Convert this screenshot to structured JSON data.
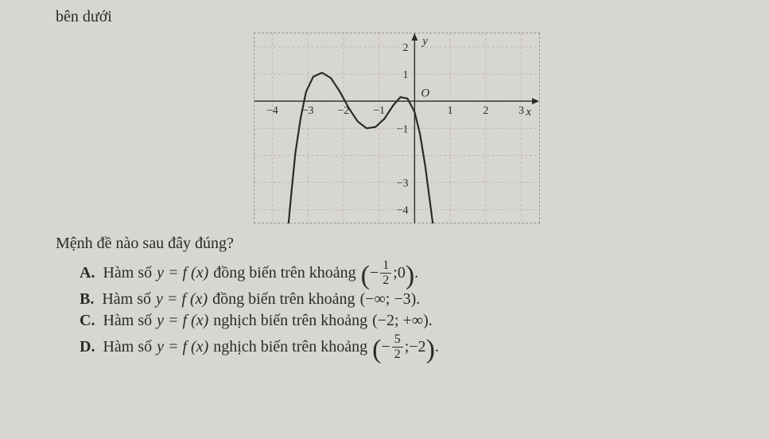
{
  "top_text": "bên dưới",
  "question": "Mệnh đề nào sau đây đúng?",
  "options": {
    "A": {
      "label": "A.",
      "pre": "Hàm số ",
      "fn": "y = f (x)",
      "mid": " đồng biến trên khoảng ",
      "interval_num": "1",
      "interval_den": "2",
      "interval_tail": ";0"
    },
    "B": {
      "label": "B.",
      "pre": "Hàm số ",
      "fn": "y = f (x)",
      "mid": " đồng biến trên khoảng ",
      "interval": "(−∞; −3)."
    },
    "C": {
      "label": "C.",
      "pre": "Hàm số ",
      "fn": "y = f (x)",
      "mid": " nghịch biến trên khoảng",
      "interval": "(−2; +∞)."
    },
    "D": {
      "label": "D.",
      "pre": "Hàm số ",
      "fn": "y = f (x)",
      "mid": " nghịch biến trên khoảng",
      "interval_num": "5",
      "interval_den": "2",
      "interval_tail": ";−2"
    }
  },
  "graph": {
    "type": "line",
    "background_color": "#d8d6d1",
    "grid_color": "#b8b3a8",
    "axis_color": "#2a2a2a",
    "curve_color": "#2a2a2a",
    "curve_width": 2.2,
    "xlim": [
      -4.5,
      3.5
    ],
    "ylim": [
      -4.5,
      2.5
    ],
    "xticks": [
      -4,
      -3,
      -2,
      -1,
      1,
      2,
      3
    ],
    "yticks": [
      -4,
      -3,
      -1,
      1,
      2
    ],
    "xtick_labels": [
      "−4",
      "−3",
      "−2",
      "−1",
      "1",
      "2",
      "3"
    ],
    "ytick_labels": [
      "−4",
      "−3",
      "−1",
      "1",
      "2"
    ],
    "x_axis_label": "x",
    "y_axis_label": "y",
    "origin_label": "O",
    "label_fontsize": 15,
    "tick_fontsize": 14,
    "curve_points": [
      [
        -3.55,
        -4.6
      ],
      [
        -3.45,
        -3.2
      ],
      [
        -3.35,
        -1.9
      ],
      [
        -3.2,
        -0.6
      ],
      [
        -3.05,
        0.35
      ],
      [
        -2.85,
        0.9
      ],
      [
        -2.6,
        1.05
      ],
      [
        -2.35,
        0.85
      ],
      [
        -2.1,
        0.35
      ],
      [
        -1.85,
        -0.25
      ],
      [
        -1.6,
        -0.75
      ],
      [
        -1.35,
        -1.0
      ],
      [
        -1.1,
        -0.95
      ],
      [
        -0.85,
        -0.65
      ],
      [
        -0.6,
        -0.15
      ],
      [
        -0.4,
        0.15
      ],
      [
        -0.2,
        0.1
      ],
      [
        0.0,
        -0.4
      ],
      [
        0.15,
        -1.2
      ],
      [
        0.3,
        -2.4
      ],
      [
        0.42,
        -3.6
      ],
      [
        0.52,
        -4.6
      ]
    ]
  }
}
